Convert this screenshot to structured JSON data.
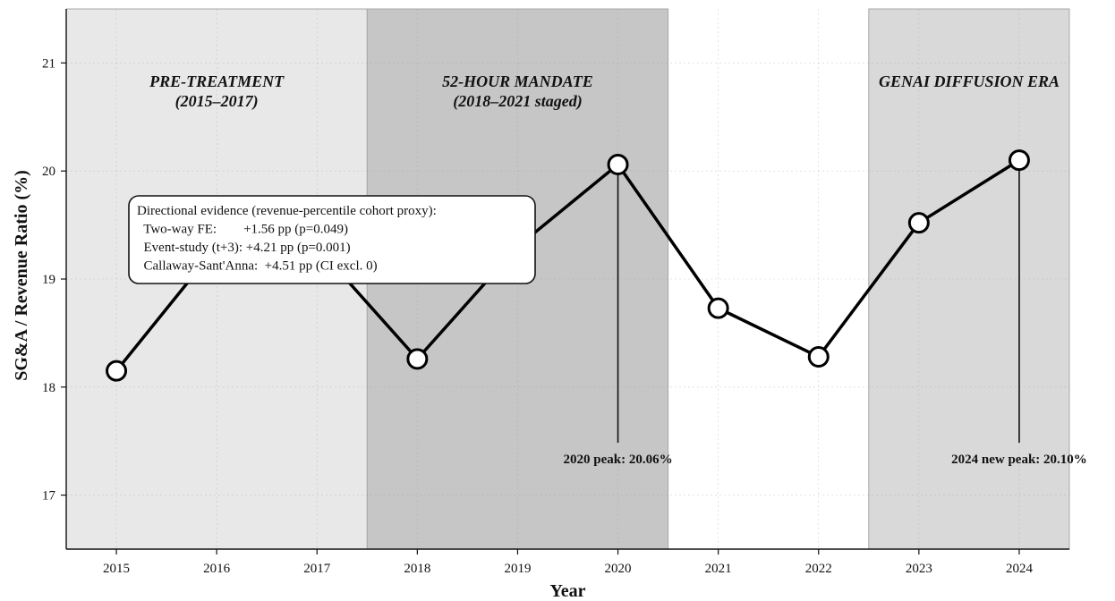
{
  "chart_data": {
    "type": "line",
    "x": [
      2015,
      2016,
      2017,
      2018,
      2019,
      2020,
      2021,
      2022,
      2023,
      2024
    ],
    "series": [
      {
        "values": [
          18.15,
          19.3,
          19.3,
          18.26,
          19.3,
          20.06,
          18.73,
          18.28,
          19.52,
          20.1
        ]
      }
    ],
    "xlabel": "Year",
    "ylabel": "SG&A / Revenue Ratio  (%)",
    "xlim": [
      2014.5,
      2024.5
    ],
    "ylim": [
      16.5,
      21.5
    ],
    "xticks": [
      "2015",
      "2016",
      "2017",
      "2018",
      "2019",
      "2020",
      "2021",
      "2022",
      "2023",
      "2024"
    ],
    "yticks": [
      "17",
      "18",
      "19",
      "20",
      "21"
    ],
    "grid": true,
    "regions": [
      {
        "x0": 2014.5,
        "x1": 2017.5,
        "color": "#e8e8e8",
        "label_lines": [
          "PRE-TREATMENT",
          "(2015–2017)"
        ]
      },
      {
        "x0": 2017.5,
        "x1": 2020.5,
        "color": "#c6c6c6",
        "label_lines": [
          "52-HOUR MANDATE",
          "(2018–2021 staged)"
        ]
      },
      {
        "x0": 2022.5,
        "x1": 2024.5,
        "color": "#d9d9d9",
        "label_lines": [
          "GENAI DIFFUSION ERA"
        ]
      }
    ],
    "annotations": [
      {
        "text": "2020 peak: 20.06%",
        "x": 2020,
        "y": 20.06
      },
      {
        "text": "2024 new peak: 20.10%",
        "x": 2024,
        "y": 20.1
      }
    ],
    "textbox": {
      "lines": [
        "Directional evidence (revenue-percentile cohort proxy):",
        "  Two-way FE:        +1.56 pp (p=0.049)",
        "  Event-study (t+3): +4.21 pp (p=0.001)",
        "  Callaway-Sant'Anna:  +4.51 pp (CI excl. 0)"
      ]
    },
    "colors": {
      "line": "#000000",
      "marker_fill": "#ffffff"
    }
  }
}
